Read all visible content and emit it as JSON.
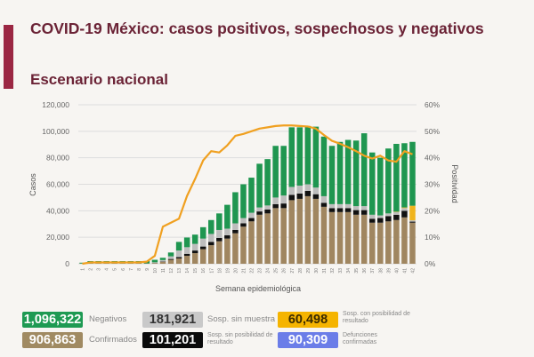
{
  "header": {
    "title": "COVID-19 México: casos positivos, sospechosos y negativos",
    "subtitle": "Escenario nacional"
  },
  "chart_data": {
    "type": "bar",
    "stacked": true,
    "xlabel": "Semana epidemiológica",
    "ylabel": "Casos",
    "y2label": "Positividad",
    "ylim": [
      0,
      120000
    ],
    "y2lim": [
      0,
      60
    ],
    "yticks": [
      "0",
      "20,000",
      "40,000",
      "60,000",
      "80,000",
      "100,000",
      "120,000"
    ],
    "y2ticks": [
      "0%",
      "10%",
      "20%",
      "30%",
      "40%",
      "50%",
      "60%"
    ],
    "grid": true,
    "categories": [
      "1",
      "2",
      "3",
      "4",
      "5",
      "6",
      "7",
      "8",
      "9",
      "10",
      "11",
      "12",
      "13",
      "14",
      "15",
      "16",
      "17",
      "18",
      "19",
      "20",
      "21",
      "22",
      "23",
      "24",
      "25",
      "26",
      "27",
      "28",
      "29",
      "30",
      "31",
      "32",
      "33",
      "34",
      "35",
      "36",
      "37",
      "38",
      "39",
      "40",
      "41",
      "42"
    ],
    "series": [
      {
        "name": "Confirmados",
        "color": "#a08660",
        "values": [
          200,
          300,
          300,
          300,
          300,
          300,
          300,
          300,
          300,
          500,
          1500,
          3000,
          4000,
          6000,
          8000,
          11000,
          14000,
          17000,
          19000,
          23000,
          28000,
          32000,
          37000,
          38000,
          42000,
          42000,
          48000,
          49000,
          51000,
          49000,
          43000,
          39000,
          39000,
          39000,
          37000,
          37000,
          31000,
          31000,
          32000,
          33000,
          35000,
          31000
        ]
      },
      {
        "name": "Sosp. sin posibilidad de resultado",
        "color": "#111111",
        "values": [
          0,
          0,
          0,
          0,
          0,
          0,
          0,
          0,
          0,
          100,
          300,
          600,
          1000,
          1500,
          2000,
          2000,
          2500,
          2500,
          2500,
          2500,
          2500,
          2500,
          2500,
          3000,
          3000,
          3500,
          4000,
          4000,
          4000,
          3500,
          3000,
          3000,
          3000,
          3000,
          3500,
          3500,
          3000,
          3500,
          4000,
          4000,
          5000,
          800
        ]
      },
      {
        "name": "Sosp. sin muestra",
        "color": "#bdbdbd",
        "values": [
          0,
          0,
          0,
          0,
          0,
          0,
          0,
          0,
          0,
          500,
          1000,
          2000,
          5000,
          5000,
          5000,
          6000,
          6000,
          6000,
          5000,
          5000,
          4000,
          4000,
          3000,
          3000,
          5000,
          6000,
          6000,
          6000,
          5000,
          5000,
          5000,
          3000,
          3000,
          3000,
          3000,
          3000,
          3000,
          2000,
          2000,
          2000,
          2000,
          1000
        ]
      },
      {
        "name": "Sosp. con posibilidad de resultado",
        "color": "#f0b41c",
        "values": [
          0,
          0,
          0,
          0,
          0,
          0,
          0,
          0,
          0,
          0,
          0,
          0,
          0,
          0,
          0,
          0,
          0,
          0,
          0,
          0,
          0,
          0,
          0,
          0,
          0,
          0,
          0,
          0,
          0,
          0,
          0,
          0,
          0,
          0,
          0,
          0,
          0,
          0,
          0,
          300,
          500,
          11000
        ]
      },
      {
        "name": "Negativos",
        "color": "#1f9650",
        "values": [
          600,
          1700,
          1700,
          1700,
          1700,
          1700,
          1700,
          1700,
          1700,
          1900,
          1700,
          2900,
          6500,
          7300,
          7000,
          8600,
          10500,
          12500,
          18000,
          23500,
          25500,
          26500,
          33000,
          35000,
          39000,
          37500,
          45000,
          44000,
          44000,
          46000,
          45000,
          44000,
          47000,
          48500,
          49500,
          55000,
          47000,
          43500,
          49000,
          51200,
          48500,
          48200
        ]
      }
    ],
    "line": {
      "name": "Positividad",
      "color": "#f0a020",
      "axis": "right",
      "values": [
        0,
        0.5,
        0.5,
        0.5,
        0.5,
        0.5,
        0.5,
        0.5,
        0.8,
        3,
        14,
        15.5,
        17,
        25.6,
        32,
        39,
        42.5,
        42,
        44.7,
        48.3,
        49,
        50,
        51,
        51.5,
        52,
        52.2,
        52.2,
        52,
        51.8,
        51,
        48.6,
        46.4,
        45.3,
        44,
        42.5,
        40.8,
        39.7,
        40.8,
        39,
        38.5,
        42.5,
        41.3
      ]
    }
  },
  "summary": {
    "negativos": {
      "value": "1,096,322",
      "label": "Negativos",
      "color": "#1e9a53"
    },
    "confirmados": {
      "value": "906,863",
      "label": "Confirmados",
      "color": "#a08a62"
    },
    "sin_muestra": {
      "value": "181,921",
      "label": "Sosp. sin muestra",
      "color": "#c9c9c9"
    },
    "sin_posibilidad": {
      "value": "101,201",
      "label": "Sosp. sin posibilidad de resultado",
      "color": "#0a0a0a"
    },
    "con_posibilidad": {
      "value": "60,498",
      "label": "Sosp. con posibilidad de resultado",
      "color": "#f5b400"
    },
    "defunciones": {
      "value": "90,309",
      "label": "Defunciones confirmadas",
      "color": "#6b7de8"
    }
  }
}
